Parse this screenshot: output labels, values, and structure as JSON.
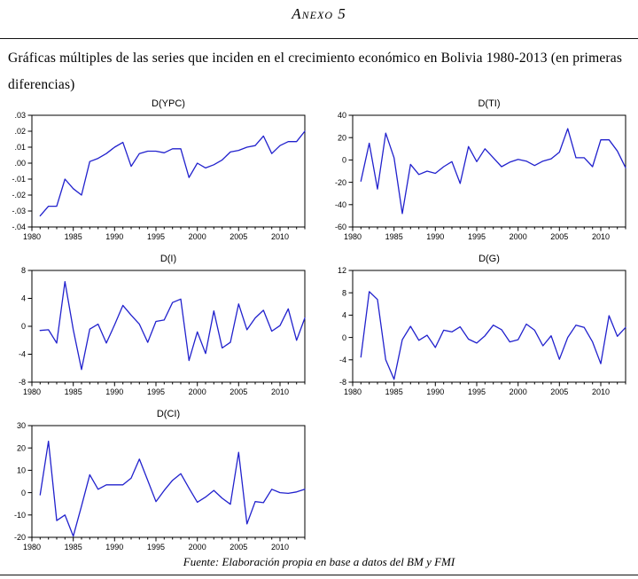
{
  "page": {
    "header_title": "Anexo 5",
    "caption": "Gráficas múltiples de las series que inciden en el crecimiento económico en Bolivia 1980-2013 (en primeras diferencias)",
    "source": "Fuente: Elaboración propia en base a datos del BM y FMI"
  },
  "style": {
    "line_color": "#2121cd",
    "text_color": "#000000"
  },
  "chart_data": {
    "type": "line",
    "layout": "grid-2col",
    "grid": false,
    "legend": "none",
    "x": [
      1981,
      1982,
      1983,
      1984,
      1985,
      1986,
      1987,
      1988,
      1989,
      1990,
      1991,
      1992,
      1993,
      1994,
      1995,
      1996,
      1997,
      1998,
      1999,
      2000,
      2001,
      2002,
      2003,
      2004,
      2005,
      2006,
      2007,
      2008,
      2009,
      2010,
      2011,
      2012,
      2013
    ],
    "xlim": [
      1980,
      2013
    ],
    "xticks": [
      1980,
      1985,
      1990,
      1995,
      2000,
      2005,
      2010
    ],
    "line_color": "#2121cd",
    "charts": [
      {
        "title": "D(YPC)",
        "ylim": [
          -0.04,
          0.03
        ],
        "yticks": [
          0.03,
          0.02,
          0.01,
          0.0,
          -0.01,
          -0.02,
          -0.03,
          -0.04
        ],
        "ytick_labels": [
          ".03",
          ".02",
          ".01",
          ".00",
          "-.01",
          "-.02",
          "-.03",
          "-.04"
        ],
        "values": [
          -0.033,
          -0.027,
          -0.027,
          -0.01,
          -0.016,
          -0.02,
          0.001,
          0.003,
          0.006,
          0.01,
          0.013,
          -0.002,
          0.006,
          0.0075,
          0.0075,
          0.0065,
          0.009,
          0.009,
          -0.009,
          0.0,
          -0.003,
          -0.001,
          0.002,
          0.007,
          0.008,
          0.01,
          0.011,
          0.017,
          0.006,
          0.011,
          0.0135,
          0.0135,
          0.02
        ]
      },
      {
        "title": "D(TI)",
        "ylim": [
          -60,
          40
        ],
        "yticks": [
          40,
          20,
          0,
          -20,
          -40,
          -60
        ],
        "ytick_labels": [
          "40",
          "20",
          "0",
          "-20",
          "-40",
          "-60"
        ],
        "values": [
          -19,
          15,
          -26,
          24,
          2,
          -48,
          -4,
          -13,
          -10,
          -12,
          -6,
          -1.5,
          -21,
          12,
          -1.5,
          10,
          2,
          -6,
          -2,
          0.5,
          -1,
          -5,
          -1,
          1,
          7,
          28,
          2,
          2,
          -6,
          18,
          18,
          8,
          -7
        ]
      },
      {
        "title": "D(I)",
        "ylim": [
          -8,
          8
        ],
        "yticks": [
          8,
          4,
          0,
          -4,
          -8
        ],
        "ytick_labels": [
          "8",
          "4",
          "0",
          "-4",
          "-8"
        ],
        "values": [
          -0.6,
          -0.5,
          -2.4,
          6.4,
          -0.5,
          -6.2,
          -0.4,
          0.3,
          -2.4,
          0.2,
          3.0,
          1.6,
          0.3,
          -2.3,
          0.7,
          0.9,
          3.4,
          3.9,
          -4.9,
          -0.8,
          -3.9,
          2.2,
          -3.1,
          -2.3,
          3.2,
          -0.5,
          1.2,
          2.3,
          -0.7,
          0.1,
          2.5,
          -2.0,
          1.2
        ]
      },
      {
        "title": "D(G)",
        "ylim": [
          -8,
          12
        ],
        "yticks": [
          12,
          8,
          4,
          0,
          -4,
          -8
        ],
        "ytick_labels": [
          "12",
          "8",
          "4",
          "0",
          "-4",
          "-8"
        ],
        "values": [
          -3.5,
          8.2,
          6.8,
          -4.0,
          -7.5,
          -0.4,
          2.0,
          -0.5,
          0.4,
          -1.8,
          1.3,
          1.0,
          1.9,
          -0.3,
          -1.0,
          0.3,
          2.2,
          1.4,
          -0.8,
          -0.4,
          2.4,
          1.3,
          -1.5,
          0.3,
          -3.9,
          0.0,
          2.2,
          1.8,
          -0.8,
          -4.7,
          3.9,
          0.2,
          1.8
        ]
      },
      {
        "title": "D(CI)",
        "ylim": [
          -20,
          30
        ],
        "yticks": [
          30,
          20,
          10,
          0,
          -10,
          -20
        ],
        "ytick_labels": [
          "30",
          "20",
          "10",
          "0",
          "-10",
          "-20"
        ],
        "values": [
          -1,
          23,
          -12.5,
          -10,
          -19.5,
          -6,
          8,
          1.5,
          3.5,
          3.5,
          3.5,
          6.5,
          15,
          5.5,
          -4,
          1,
          5.5,
          8.5,
          2,
          -4.3,
          -2,
          1,
          -2.5,
          -5.2,
          18,
          -14,
          -4,
          -4.5,
          1.5,
          0,
          -0.3,
          0.3,
          1.5
        ]
      }
    ]
  }
}
